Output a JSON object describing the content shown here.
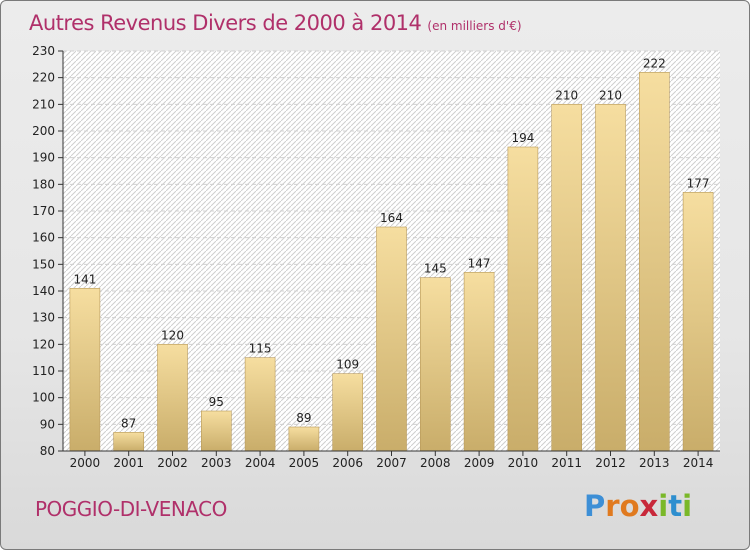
{
  "header": {
    "title": "Autres Revenus Divers de 2000 à 2014",
    "unit": "(en milliers d'€)"
  },
  "footer": {
    "commune": "POGGIO-DI-VENACO",
    "logo_letters": [
      {
        "char": "P",
        "color": "#3d8fd6"
      },
      {
        "char": "r",
        "color": "#e07a1f"
      },
      {
        "char": "o",
        "color": "#e07a1f"
      },
      {
        "char": "x",
        "color": "#c8283a"
      },
      {
        "char": "i",
        "color": "#7ab829"
      },
      {
        "char": "t",
        "color": "#2e8fcf"
      },
      {
        "char": "i",
        "color": "#7ab829"
      }
    ]
  },
  "colors": {
    "title": "#b0306a",
    "bar_top": "#f6dea0",
    "bar_bottom": "#c9ad6a",
    "bar_edge": "#b8995a"
  },
  "chart_data": {
    "type": "bar",
    "categories": [
      "2000",
      "2001",
      "2002",
      "2003",
      "2004",
      "2005",
      "2006",
      "2007",
      "2008",
      "2009",
      "2010",
      "2011",
      "2012",
      "2013",
      "2014"
    ],
    "values": [
      141,
      87,
      120,
      95,
      115,
      89,
      109,
      164,
      145,
      147,
      194,
      210,
      210,
      222,
      177
    ],
    "ylim": [
      80,
      230
    ],
    "yticks": [
      80,
      90,
      100,
      110,
      120,
      130,
      140,
      150,
      160,
      170,
      180,
      190,
      200,
      210,
      220,
      230
    ],
    "grid": true
  }
}
